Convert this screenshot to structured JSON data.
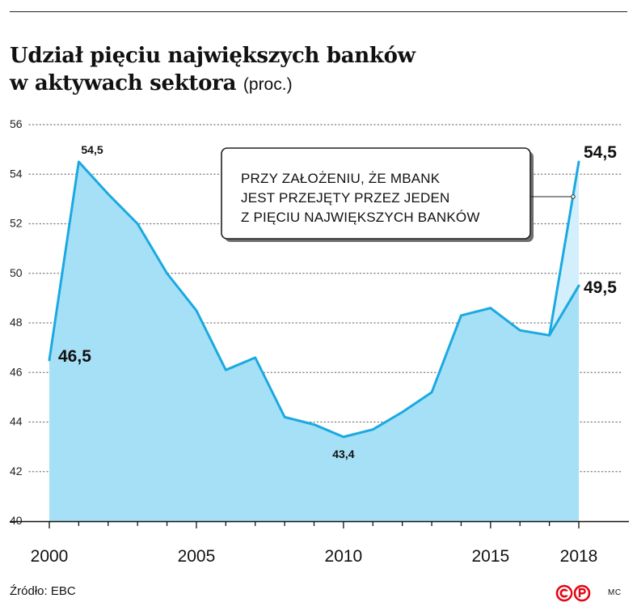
{
  "title": {
    "line1": "Udział pięciu największych banków",
    "line2": "w aktywach sektora",
    "unit": "(proc.)"
  },
  "source": "Źródło: EBC",
  "author": "MC",
  "colors": {
    "line": "#1aa9e1",
    "area": "#a6e0f7",
    "area_light": "#d2effb",
    "logo": "#e30613"
  },
  "chart_data": {
    "type": "area",
    "x": [
      2000,
      2001,
      2002,
      2003,
      2004,
      2005,
      2006,
      2007,
      2008,
      2009,
      2010,
      2011,
      2012,
      2013,
      2014,
      2015,
      2016,
      2017,
      2018
    ],
    "series": [
      {
        "values": [
          46.5,
          54.5,
          53.2,
          52.0,
          50.0,
          48.5,
          46.1,
          46.6,
          44.2,
          43.9,
          43.4,
          43.7,
          44.4,
          45.2,
          48.3,
          48.6,
          47.7,
          47.5,
          49.5
        ]
      },
      {
        "x": [
          2017,
          2018
        ],
        "values": [
          47.5,
          54.5
        ]
      }
    ],
    "ylim": [
      40,
      56
    ],
    "yticks": [
      "40",
      "42",
      "44",
      "46",
      "48",
      "50",
      "52",
      "54",
      "56"
    ],
    "xticks": [
      "2000",
      "2005",
      "2010",
      "2015",
      "2018"
    ],
    "grid": true,
    "data_labels": {
      "start": "46,5",
      "peak": "54,5",
      "min": "43,4",
      "end": "49,5",
      "scenario_end": "54,5"
    },
    "annotation": [
      "PRZY ZAŁOŻENIU, ŻE MBANK",
      "JEST PRZEJĘTY PRZEZ JEDEN",
      "Z PIĘCIU NAJWIĘKSZYCH BANKÓW"
    ]
  }
}
